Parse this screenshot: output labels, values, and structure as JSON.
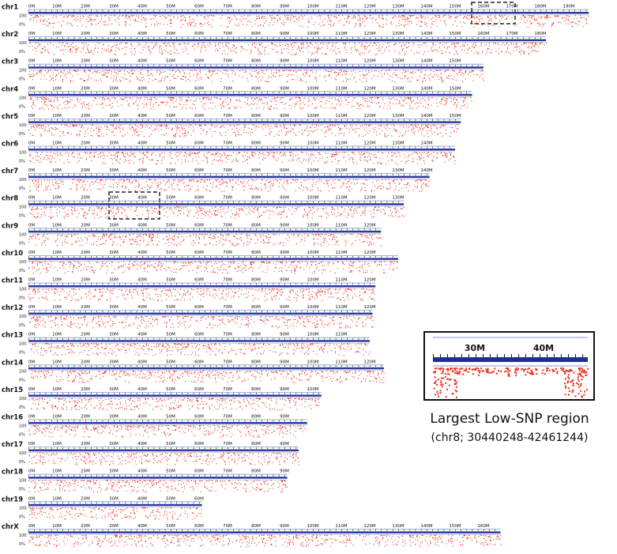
{
  "chromosomes": [
    {
      "label": "chr1",
      "length": 197
    },
    {
      "label": "chr2",
      "length": 182
    },
    {
      "label": "chr3",
      "length": 160
    },
    {
      "label": "chr4",
      "length": 156
    },
    {
      "label": "chr5",
      "length": 152
    },
    {
      "label": "chr6",
      "length": 150
    },
    {
      "label": "chr7",
      "length": 141
    },
    {
      "label": "chr8",
      "length": 132
    },
    {
      "label": "chr9",
      "length": 124
    },
    {
      "label": "chr10",
      "length": 130
    },
    {
      "label": "chr11",
      "length": 122
    },
    {
      "label": "chr12",
      "length": 121
    },
    {
      "label": "chr13",
      "length": 120
    },
    {
      "label": "chr14",
      "length": 125
    },
    {
      "label": "chr15",
      "length": 103
    },
    {
      "label": "chr16",
      "length": 98
    },
    {
      "label": "chr17",
      "length": 95
    },
    {
      "label": "chr18",
      "length": 91
    },
    {
      "label": "chr19",
      "length": 61
    },
    {
      "label": "chrX",
      "length": 166
    }
  ],
  "tick_labels": [
    {
      "value": 0,
      "label": "0M"
    },
    {
      "value": 10,
      "label": "10M"
    },
    {
      "value": 20,
      "label": "20M"
    },
    {
      "value": 30,
      "label": "30M"
    },
    {
      "value": 40,
      "label": "40M"
    },
    {
      "value": 50,
      "label": "50M"
    },
    {
      "value": 60,
      "label": "60M"
    },
    {
      "value": 70,
      "label": "70M"
    },
    {
      "value": 80,
      "label": "80M"
    },
    {
      "value": 90,
      "label": "90M"
    },
    {
      "value": 100,
      "label": "100M"
    },
    {
      "value": 110,
      "label": "110M"
    },
    {
      "value": 120,
      "label": "120M"
    },
    {
      "value": 130,
      "label": "130M"
    },
    {
      "value": 140,
      "label": "140M"
    },
    {
      "value": 150,
      "label": "150M"
    },
    {
      "value": 160,
      "label": "160M"
    },
    {
      "value": 170,
      "label": "170M"
    },
    {
      "value": 180,
      "label": "180M"
    },
    {
      "value": 190,
      "label": "190M"
    }
  ],
  "y_labels": [
    "100",
    "0%"
  ],
  "inset": {
    "ticks": [
      "30M",
      "40M"
    ],
    "title": "Largest Low-SNP region",
    "subtitle": "(chr8; 30440248-42461244)"
  }
}
